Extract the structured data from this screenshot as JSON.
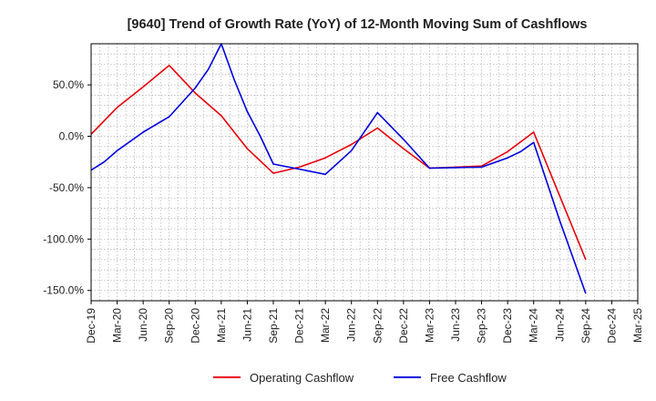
{
  "chart_data": {
    "type": "line",
    "title": "[9640]  Trend of Growth Rate (YoY) of 12-Month Moving Sum of Cashflows",
    "xlabel": "",
    "ylabel": "",
    "x_tick_labels": [
      "Dec-19",
      "Mar-20",
      "Jun-20",
      "Sep-20",
      "Dec-20",
      "Mar-21",
      "Jun-21",
      "Sep-21",
      "Dec-21",
      "Mar-22",
      "Jun-22",
      "Sep-22",
      "Dec-22",
      "Mar-23",
      "Jun-23",
      "Sep-23",
      "Dec-23",
      "Mar-24",
      "Jun-24",
      "Sep-24",
      "Dec-24",
      "Mar-25"
    ],
    "y_ticks": [
      50,
      0,
      -50,
      -100,
      -150
    ],
    "y_tick_labels": [
      "50.0%",
      "0.0%",
      "-50.0%",
      "-100.0%",
      "-150.0%"
    ],
    "ylim": [
      -160,
      90
    ],
    "grid": true,
    "legend_position": "bottom",
    "colors": {
      "operating": "#e8000b",
      "free": "#0000dd",
      "grid": "#b0b0b0",
      "axis": "#000000"
    },
    "series": [
      {
        "name": "Operating Cashflow",
        "color": "#e8000b",
        "points": [
          [
            0,
            2
          ],
          [
            1,
            28
          ],
          [
            2,
            48
          ],
          [
            3,
            69
          ],
          [
            4,
            42
          ],
          [
            5,
            20
          ],
          [
            6,
            -12
          ],
          [
            7,
            -36
          ],
          [
            8,
            -30
          ],
          [
            9,
            -21
          ],
          [
            10,
            -8
          ],
          [
            11,
            8
          ],
          [
            12,
            -12
          ],
          [
            13,
            -31
          ],
          [
            14,
            -30
          ],
          [
            15,
            -29
          ],
          [
            16,
            -15
          ],
          [
            17,
            4
          ],
          [
            18,
            -58
          ],
          [
            19,
            -120
          ]
        ]
      },
      {
        "name": "Free Cashflow",
        "color": "#0000dd",
        "points": [
          [
            0,
            -33
          ],
          [
            0.5,
            -25
          ],
          [
            1,
            -14
          ],
          [
            2,
            4
          ],
          [
            3,
            19
          ],
          [
            4,
            47
          ],
          [
            4.5,
            65
          ],
          [
            5,
            90
          ],
          [
            5.5,
            55
          ],
          [
            6,
            24
          ],
          [
            6.5,
            0
          ],
          [
            7,
            -27
          ],
          [
            8,
            -32
          ],
          [
            9,
            -37
          ],
          [
            10,
            -14
          ],
          [
            11,
            23
          ],
          [
            12,
            -3
          ],
          [
            13,
            -31
          ],
          [
            14,
            -30.5
          ],
          [
            15,
            -30
          ],
          [
            16,
            -21
          ],
          [
            16.5,
            -15
          ],
          [
            17,
            -6
          ],
          [
            18,
            -82
          ],
          [
            19,
            -153
          ]
        ]
      }
    ]
  }
}
